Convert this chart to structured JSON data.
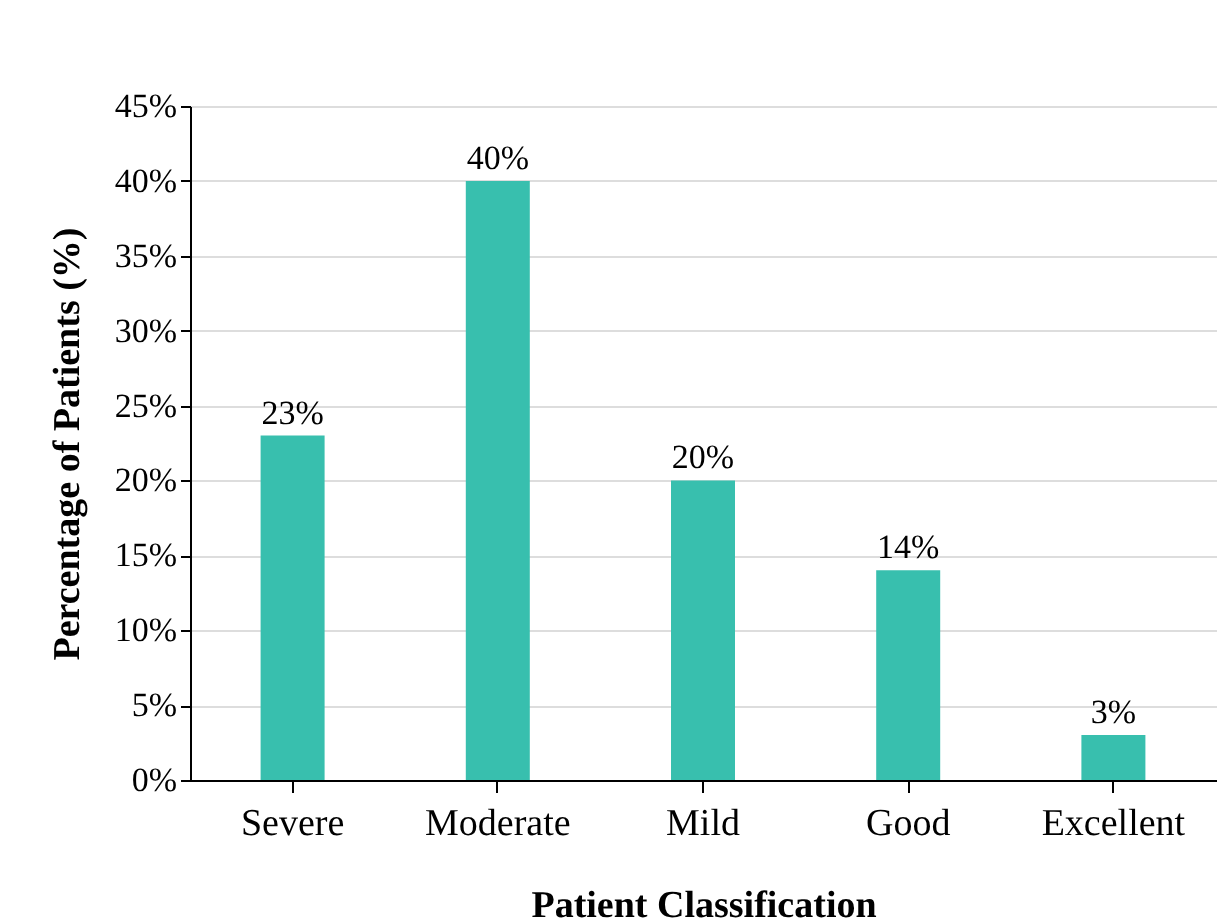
{
  "chart_data": {
    "type": "bar",
    "xlabel": "Patient Classification",
    "ylabel": "Percentage of Patients (%)",
    "categories": [
      "Severe",
      "Moderate",
      "Mild",
      "Good",
      "Excellent"
    ],
    "values": [
      23,
      40,
      20,
      14,
      3
    ],
    "value_labels": [
      "23%",
      "40%",
      "20%",
      "14%",
      "3%"
    ],
    "color": "#38bfae",
    "ylim": [
      0,
      45
    ],
    "yticks": [
      {
        "value": 0,
        "label": "0%"
      },
      {
        "value": 5,
        "label": "5%"
      },
      {
        "value": 10,
        "label": "10%"
      },
      {
        "value": 15,
        "label": "15%"
      },
      {
        "value": 20,
        "label": "20%"
      },
      {
        "value": 25,
        "label": "25%"
      },
      {
        "value": 30,
        "label": "30%"
      },
      {
        "value": 35,
        "label": "35%"
      },
      {
        "value": 40,
        "label": "40%"
      },
      {
        "value": 45,
        "label": "45%"
      }
    ],
    "grid": "y"
  }
}
